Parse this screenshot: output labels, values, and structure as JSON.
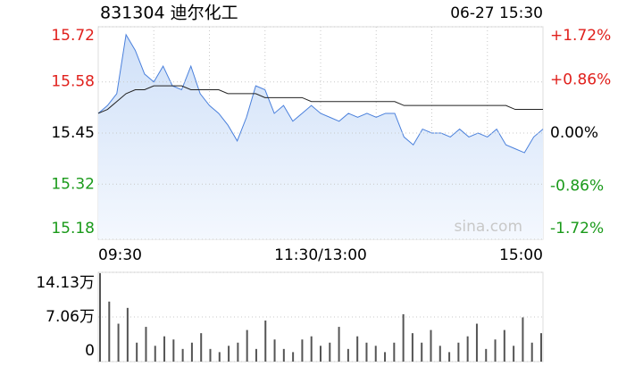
{
  "chart_data": [
    {
      "type": "line",
      "title": "831304 迪尔化工",
      "subtitle": "06-27 15:30",
      "watermark": "sina.com",
      "categories": [
        "09:30",
        null,
        null,
        null,
        null,
        null,
        null,
        null,
        null,
        null,
        null,
        null,
        null,
        null,
        null,
        null,
        null,
        null,
        null,
        null,
        null,
        null,
        null,
        null,
        "11:30/13:00",
        null,
        null,
        null,
        null,
        null,
        null,
        null,
        null,
        null,
        null,
        null,
        null,
        null,
        null,
        null,
        null,
        null,
        null,
        null,
        null,
        null,
        null,
        null,
        "15:00"
      ],
      "series": [
        {
          "name": "price",
          "color": "#4a80dc",
          "values": [
            15.5,
            15.52,
            15.55,
            15.7,
            15.66,
            15.6,
            15.58,
            15.62,
            15.57,
            15.56,
            15.62,
            15.55,
            15.52,
            15.5,
            15.47,
            15.43,
            15.49,
            15.57,
            15.56,
            15.5,
            15.52,
            15.48,
            15.5,
            15.52,
            15.5,
            15.49,
            15.48,
            15.5,
            15.49,
            15.5,
            15.49,
            15.5,
            15.5,
            15.44,
            15.42,
            15.46,
            15.45,
            15.45,
            15.44,
            15.46,
            15.44,
            15.45,
            15.44,
            15.46,
            15.42,
            15.41,
            15.4,
            15.44,
            15.46
          ]
        },
        {
          "name": "average",
          "color": "#222222",
          "values": [
            15.5,
            15.51,
            15.53,
            15.55,
            15.56,
            15.56,
            15.57,
            15.57,
            15.57,
            15.57,
            15.56,
            15.56,
            15.56,
            15.56,
            15.55,
            15.55,
            15.55,
            15.55,
            15.54,
            15.54,
            15.54,
            15.54,
            15.54,
            15.53,
            15.53,
            15.53,
            15.53,
            15.53,
            15.53,
            15.53,
            15.53,
            15.53,
            15.53,
            15.52,
            15.52,
            15.52,
            15.52,
            15.52,
            15.52,
            15.52,
            15.52,
            15.52,
            15.52,
            15.52,
            15.52,
            15.51,
            15.51,
            15.51,
            15.51
          ]
        }
      ],
      "ylim": [
        15.18,
        15.72
      ],
      "yticks": [
        15.72,
        15.58,
        15.45,
        15.32,
        15.18
      ],
      "y2lim": [
        -1.72,
        1.72
      ],
      "y2ticks": [
        {
          "value": 1.72,
          "label": "+1.72%"
        },
        {
          "value": 0.86,
          "label": "+0.86%"
        },
        {
          "value": 0,
          "label": "0.00%"
        },
        {
          "value": -0.86,
          "label": "-0.86%"
        },
        {
          "value": -1.72,
          "label": "-1.72%"
        }
      ],
      "up_color": "#e0201c",
      "down_color": "#1a9a1a",
      "grid": true
    },
    {
      "type": "bar",
      "color": "#555555",
      "values": [
        14.0,
        9.5,
        6.0,
        8.5,
        3.0,
        5.5,
        2.5,
        4.0,
        3.5,
        2.0,
        3.0,
        4.5,
        2.0,
        1.5,
        2.5,
        3.0,
        5.0,
        2.0,
        6.5,
        3.5,
        2.0,
        1.5,
        3.5,
        4.0,
        2.5,
        3.0,
        5.5,
        2.0,
        4.0,
        3.0,
        2.5,
        1.5,
        3.0,
        7.5,
        4.5,
        3.0,
        5.0,
        2.5,
        1.5,
        3.0,
        4.0,
        6.0,
        2.0,
        3.5,
        5.0,
        2.5,
        7.0,
        3.0,
        4.5
      ],
      "ylim": [
        0,
        14.13
      ],
      "yticks": [
        {
          "value": 14.13,
          "label": "14.13万"
        },
        {
          "value": 7.06,
          "label": "7.06万"
        },
        0
      ]
    }
  ]
}
